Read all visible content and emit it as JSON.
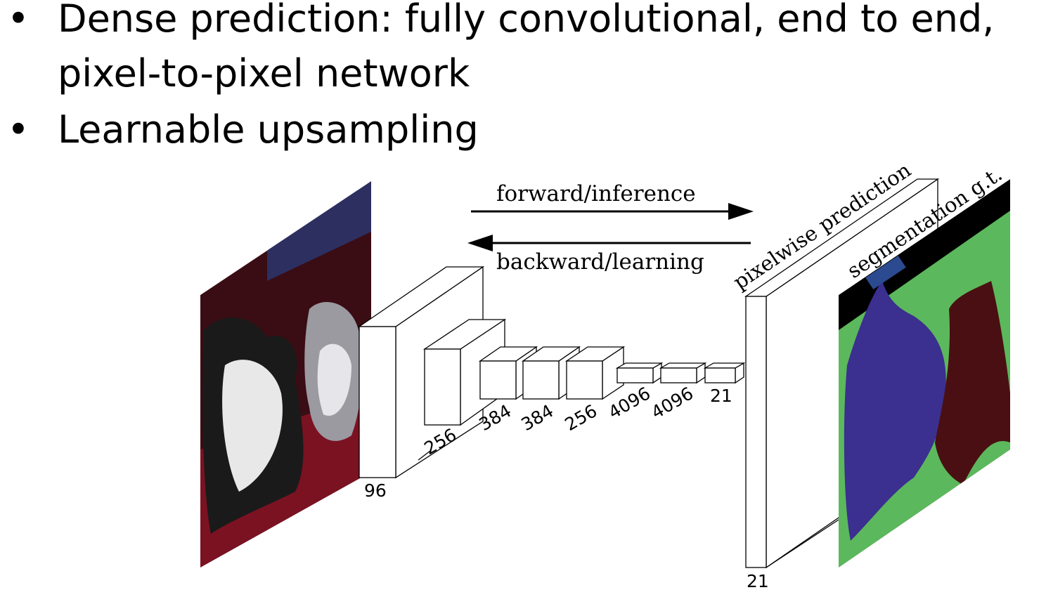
{
  "bullets": [
    {
      "line1": "Dense prediction: fully convolutional, end to end,",
      "line2": "pixel-to-pixel network"
    },
    {
      "line1": "Learnable upsampling",
      "line2": ""
    }
  ],
  "bullet_symbol": "•",
  "diagram": {
    "forward_label": "forward/inference",
    "backward_label": "backward/learning",
    "prediction_label": "pixelwise prediction",
    "groundtruth_label": "segmentation g.t.",
    "layer_labels": [
      "96",
      "256",
      "384",
      "384",
      "256",
      "4096",
      "4096",
      "21"
    ],
    "output_channels": "21",
    "colors": {
      "gt_background": "#5cb85c",
      "gt_dog": "#3b2f8f",
      "gt_cat": "#4a0f12",
      "gt_border": "#000000",
      "photo_wall": "#3a0c14",
      "photo_couch": "#7a1222",
      "photo_blinds": "#2c2f60"
    }
  }
}
